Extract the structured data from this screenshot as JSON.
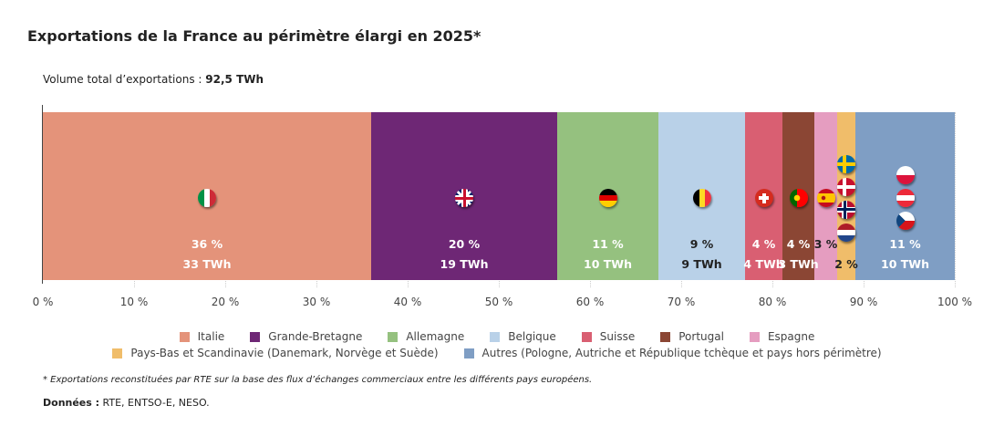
{
  "title": "Exportations de la France au périmètre élargi en 2025*",
  "volume_label": "Volume total d’exportations :",
  "volume_value": "92,5 TWh",
  "chart_data": {
    "type": "bar",
    "orientation": "horizontal-stacked-100",
    "title": "Exportations de la France au périmètre élargi en 2025*",
    "xlim": [
      0,
      100
    ],
    "x_ticks": [
      "0 %",
      "10 %",
      "20 %",
      "30 %",
      "40 %",
      "50 %",
      "60 %",
      "70 %",
      "80 %",
      "90 %",
      "100 %"
    ],
    "grid": true,
    "legend_position": "bottom",
    "series": [
      {
        "name": "Italie",
        "share": 36.0,
        "pct_label": "36 %",
        "twh_label": "33 TWh",
        "color": "#e4937a",
        "text_color": "#ffffff",
        "flags": [
          "flag-italy"
        ]
      },
      {
        "name": "Grande-Bretagne",
        "share": 20.4,
        "pct_label": "20 %",
        "twh_label": "19 TWh",
        "color": "#6e2775",
        "text_color": "#ffffff",
        "flags": [
          "flag-united-kingdom"
        ]
      },
      {
        "name": "Allemagne",
        "share": 11.1,
        "pct_label": "11 %",
        "twh_label": "10 TWh",
        "color": "#95c17f",
        "text_color": "#ffffff",
        "flags": [
          "flag-germany"
        ]
      },
      {
        "name": "Belgique",
        "share": 9.5,
        "pct_label": "9 %",
        "twh_label": "9 TWh",
        "color": "#b9d1e8",
        "text_color": "#222222",
        "flags": [
          "flag-belgium"
        ]
      },
      {
        "name": "Suisse",
        "share": 4.1,
        "pct_label": "4 %",
        "twh_label": "4 TWh",
        "color": "#d95f72",
        "text_color": "#ffffff",
        "flags": [
          "flag-switzerland"
        ]
      },
      {
        "name": "Portugal",
        "share": 3.5,
        "pct_label": "4 %",
        "twh_label": "3 TWh",
        "color": "#8b4634",
        "text_color": "#ffffff",
        "flags": [
          "flag-portugal"
        ]
      },
      {
        "name": "Espagne",
        "share": 2.5,
        "pct_label": "3 %",
        "twh_label": "",
        "color": "#e59dc0",
        "text_color": "#222222",
        "flags": [
          "flag-spain"
        ]
      },
      {
        "name": "Pays-Bas et Scandinavie (Danemark, Norvège et Suède)",
        "share": 2.0,
        "pct_label": "",
        "twh_label": "2 %",
        "color": "#f0bd6a",
        "text_color": "#222222",
        "flags": [
          "flag-sweden",
          "flag-denmark",
          "flag-norway",
          "flag-netherlands"
        ]
      },
      {
        "name": "Autres (Pologne, Autriche et République tchèque et pays hors périmètre)",
        "share": 10.9,
        "pct_label": "11 %",
        "twh_label": "10 TWh",
        "color": "#7f9ec4",
        "text_color": "#ffffff",
        "flags": [
          "flag-poland",
          "flag-austria",
          "flag-czech-republic"
        ]
      }
    ]
  },
  "footnote": "* Exportations reconstituées par RTE sur la base des flux d’échanges commerciaux entre les différents pays européens.",
  "source_label": "Données :",
  "source_value": "RTE, ENTSO-E, NESO."
}
